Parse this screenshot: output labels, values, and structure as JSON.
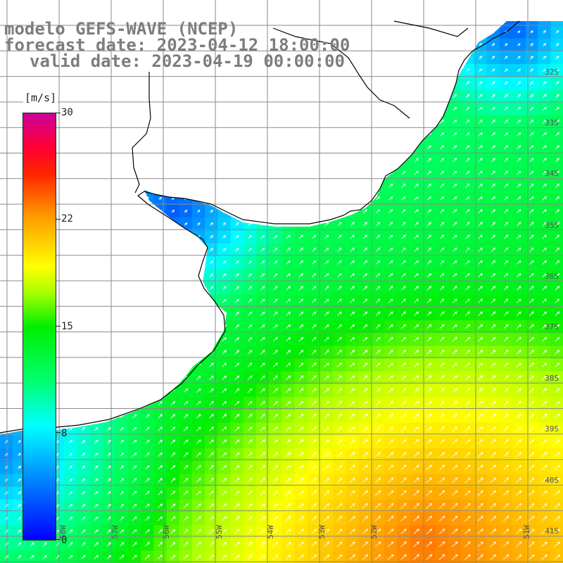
{
  "title": {
    "line1": "modelo GEFS-WAVE (NCEP)",
    "line2": "forecast date: 2023-04-12 18:00:00",
    "line3": "valid date: 2023-04-19 00:00:00"
  },
  "colorbar": {
    "unit": "[m/s]",
    "min": 0,
    "max": 30,
    "tick_labels": [
      "0",
      "8",
      "15",
      "22",
      "30"
    ],
    "tick_values": [
      0,
      8,
      15,
      22,
      30
    ]
  },
  "latitude_labels": [
    "32S",
    "33S",
    "34S",
    "35S",
    "36S",
    "37S",
    "38S",
    "39S",
    "40S",
    "41S"
  ],
  "longitude_labels": [
    "58W",
    "57W",
    "56W",
    "55W",
    "54W",
    "53W",
    "52W",
    "51W"
  ],
  "colors": {
    "land": "#ffffff",
    "grid": "#8a8a8a",
    "coast": "#000000",
    "arrows": "#ffffff",
    "title_text": "#7d7d7d"
  },
  "field": {
    "variable": "wind speed",
    "units": "m/s",
    "range": [
      0,
      30
    ]
  }
}
